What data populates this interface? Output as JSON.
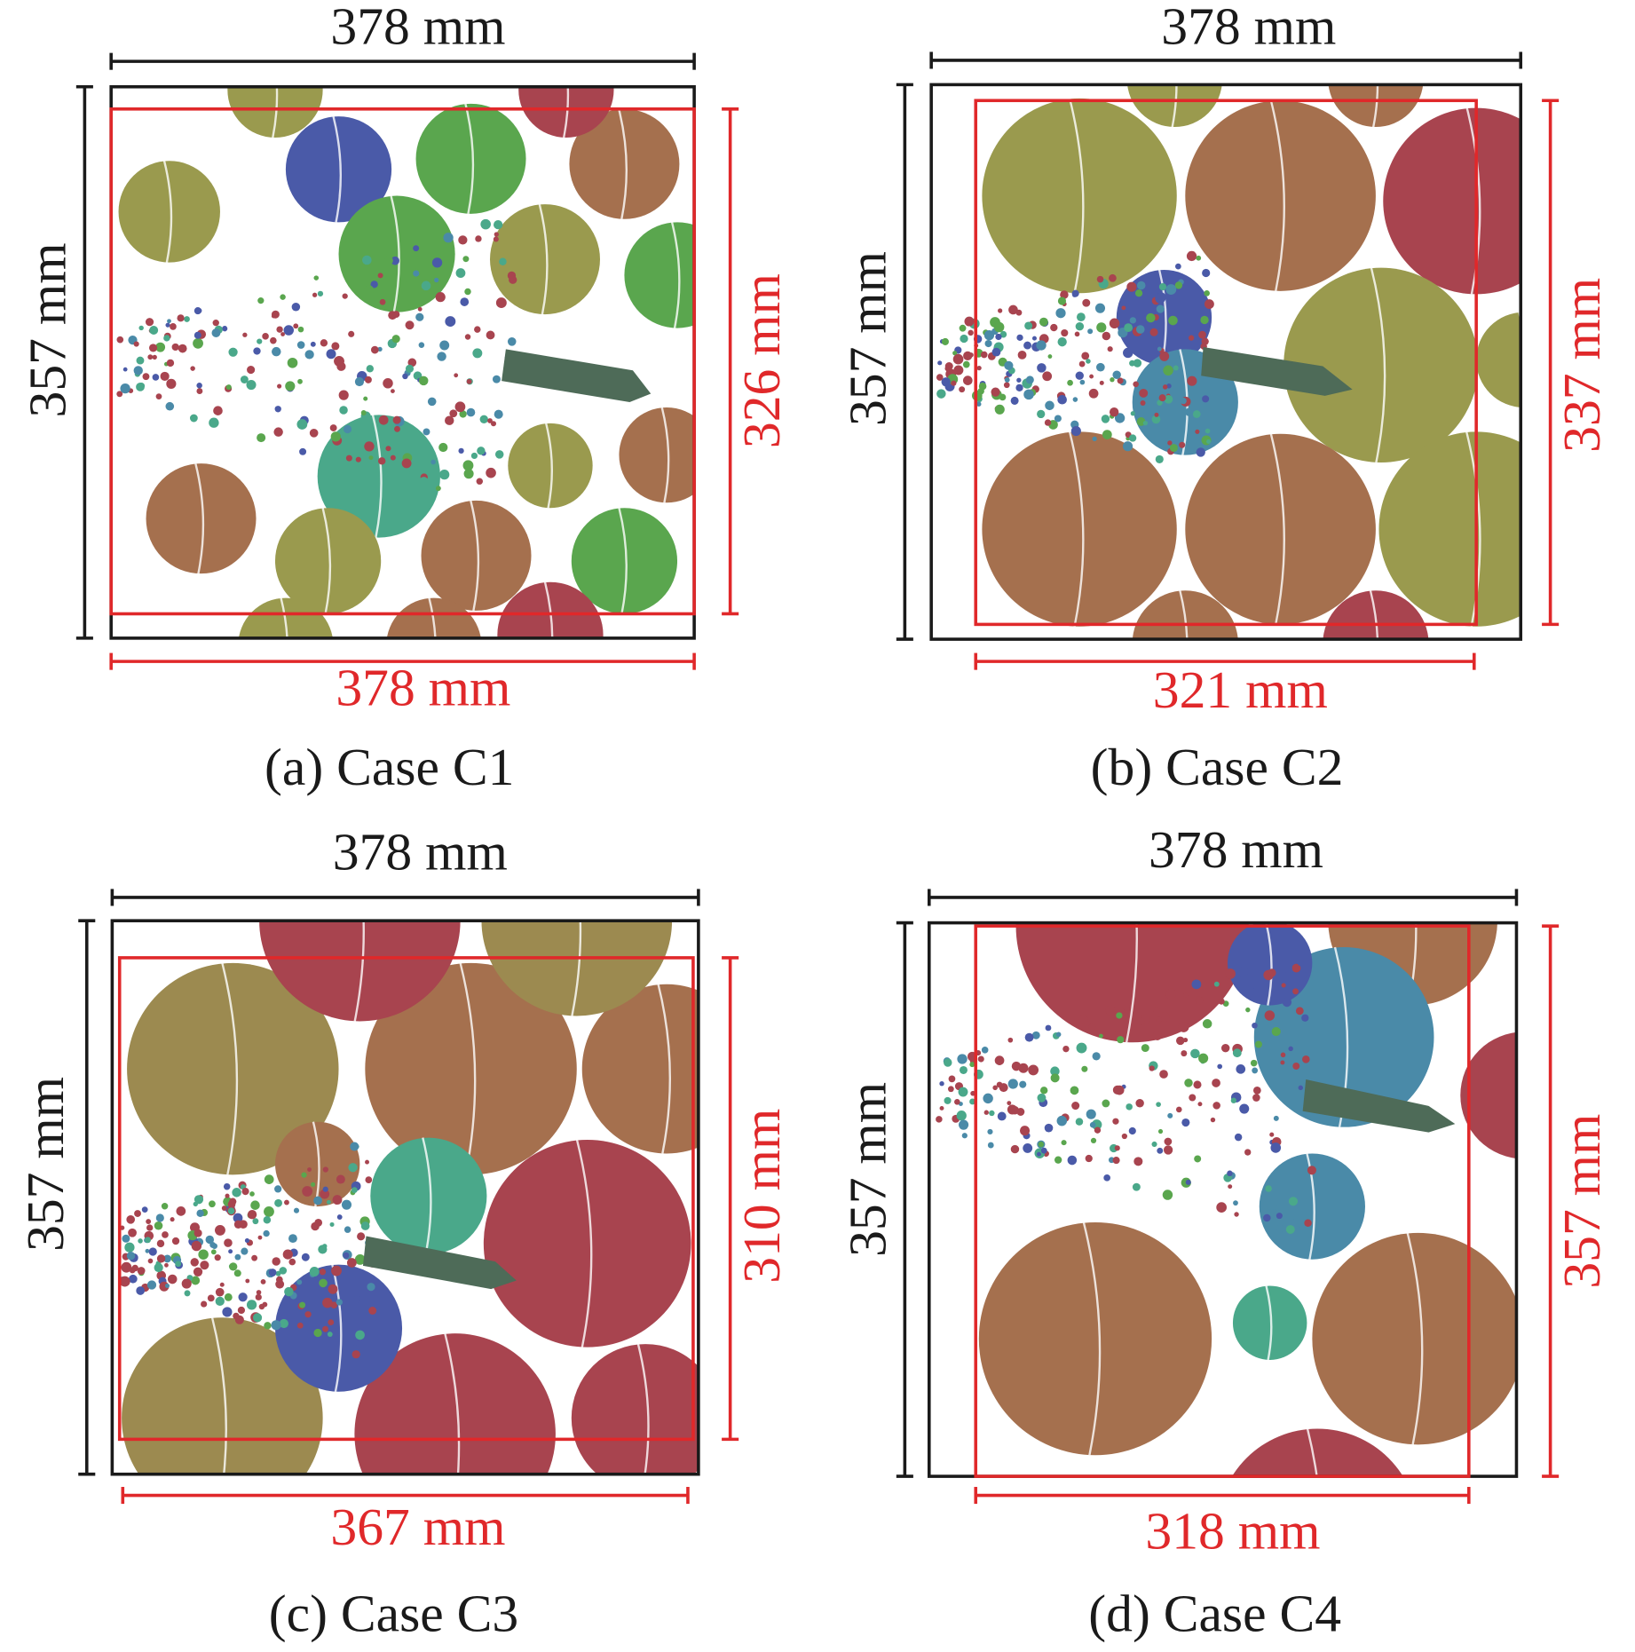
{
  "panels": [
    {
      "caption": "(a) Case C1",
      "top_width": "378 mm",
      "left_height": "357 mm",
      "red_height": "326 mm",
      "red_width": "378 mm"
    },
    {
      "caption": "(b) Case C2",
      "top_width": "378 mm",
      "left_height": "357 mm",
      "red_height": "337 mm",
      "red_width": "321 mm"
    },
    {
      "caption": "(c) Case C3",
      "top_width": "378 mm",
      "left_height": "357 mm",
      "red_height": "310 mm",
      "red_width": "367 mm"
    },
    {
      "caption": "(d) Case C4",
      "top_width": "378 mm",
      "left_height": "357 mm",
      "red_height": "357 mm",
      "red_width": "318 mm"
    }
  ]
}
